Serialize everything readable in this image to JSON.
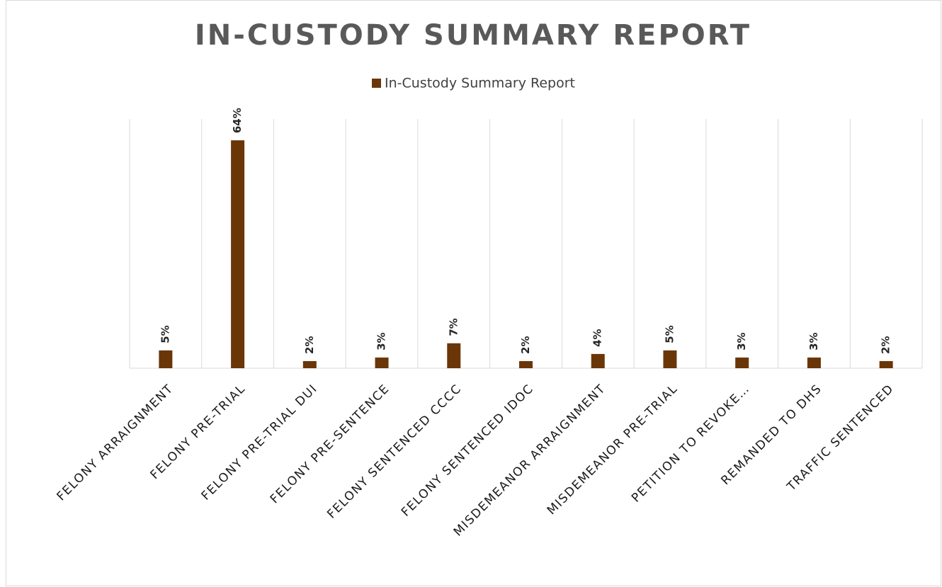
{
  "chart_data": {
    "type": "bar",
    "title": "IN-CUSTODY SUMMARY REPORT",
    "categories": [
      "FELONY ARRAIGNMENT",
      "FELONY PRE-TRIAL",
      "FELONY PRE-TRIAL DUI",
      "FELONY PRE-SENTENCE",
      "FELONY SENTENCED CCCC",
      "FELONY SENTENCED IDOC",
      "MISDEMEANOR ARRAIGNMENT",
      "MISDEMEANOR PRE-TRIAL",
      "PETITION TO REVOKE…",
      "REMANDED TO DHS",
      "TRAFFIC SENTENCED"
    ],
    "series": [
      {
        "name": "In-Custody Summary Report",
        "color": "#6a3608",
        "values": [
          5,
          64,
          2,
          3,
          7,
          2,
          4,
          5,
          3,
          3,
          2
        ],
        "value_labels": [
          "5%",
          "64%",
          "2%",
          "3%",
          "7%",
          "2%",
          "4%",
          "5%",
          "3%",
          "3%",
          "2%"
        ]
      }
    ],
    "ylim": [
      0,
      70
    ],
    "grid": true,
    "legend": "top"
  }
}
